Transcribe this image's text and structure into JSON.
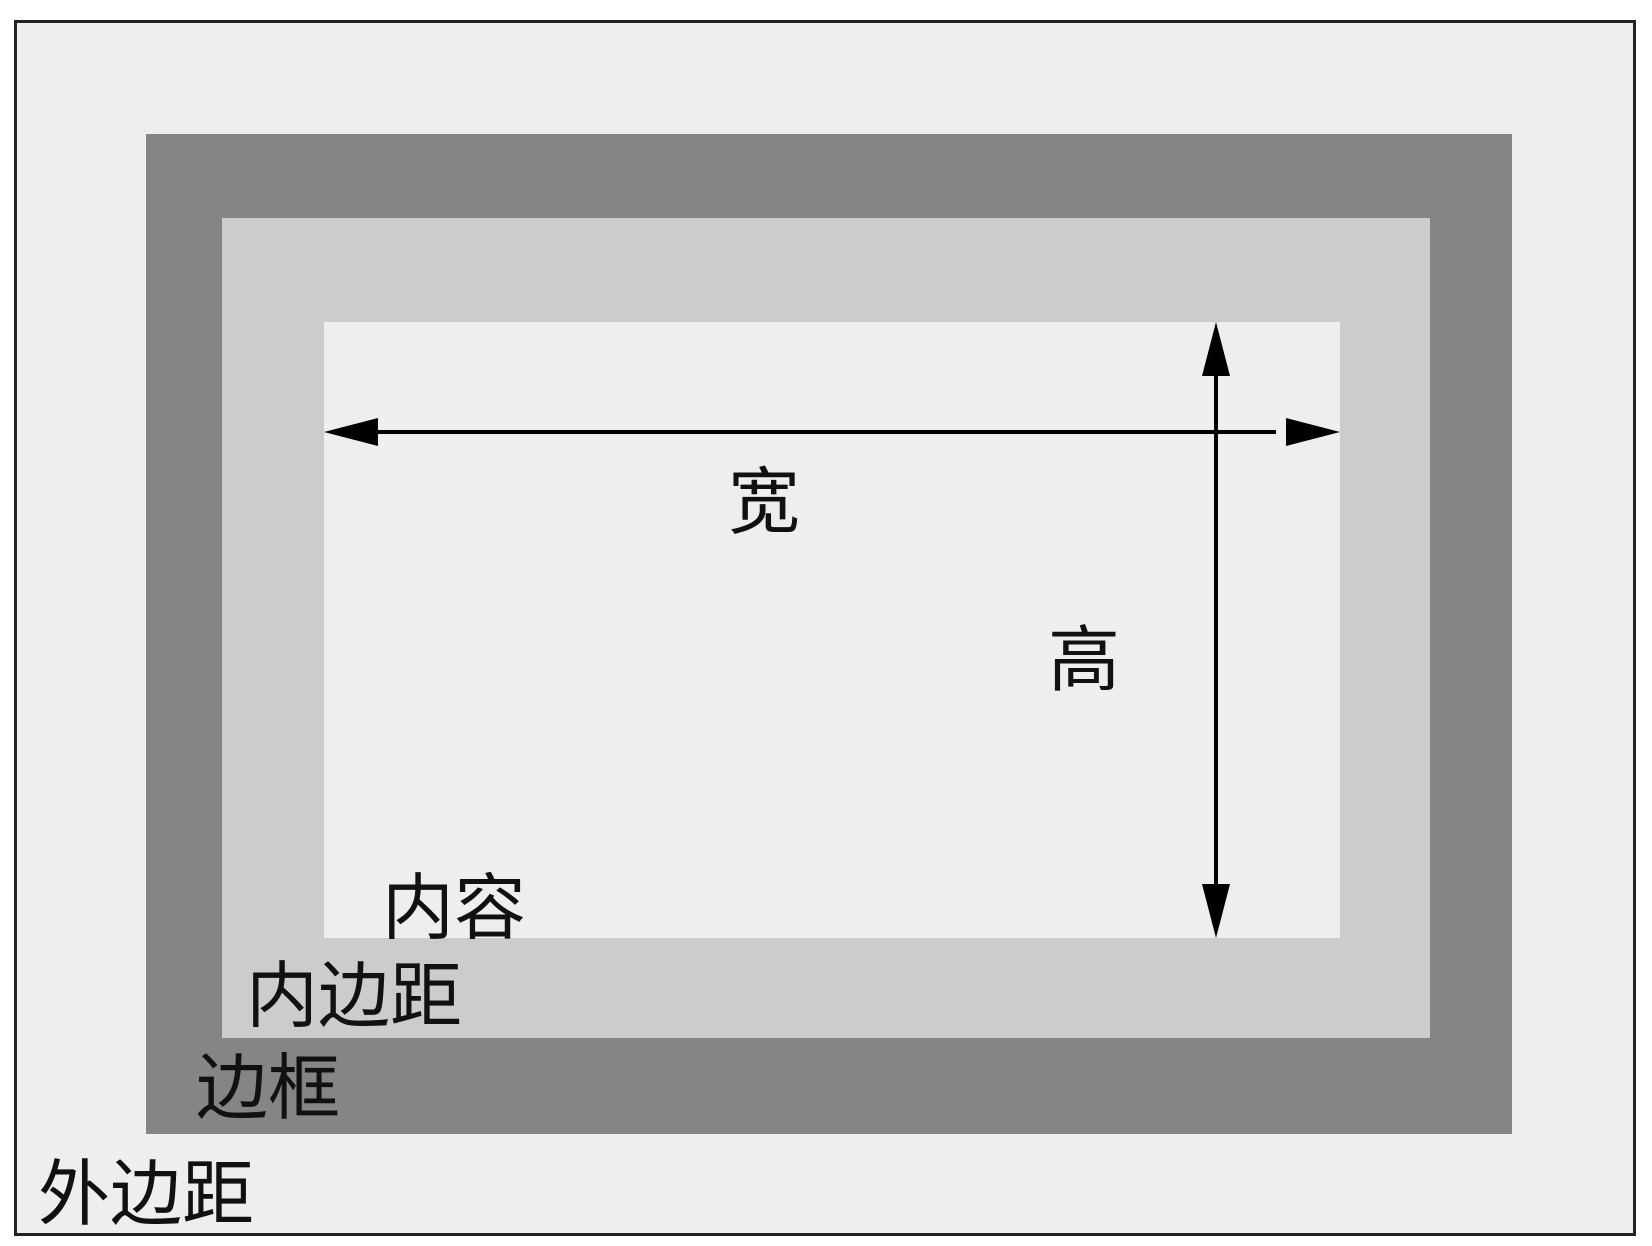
{
  "labels": {
    "width": "宽",
    "height": "高",
    "content": "内容",
    "padding": "内边距",
    "border": "边框",
    "margin": "外边距"
  },
  "colors": {
    "margin_fill": "#eeeeee",
    "border_fill": "#858585",
    "padding_fill": "#cccccc",
    "content_fill": "#eeeeee",
    "outline": "#222222",
    "arrow": "#000000"
  }
}
